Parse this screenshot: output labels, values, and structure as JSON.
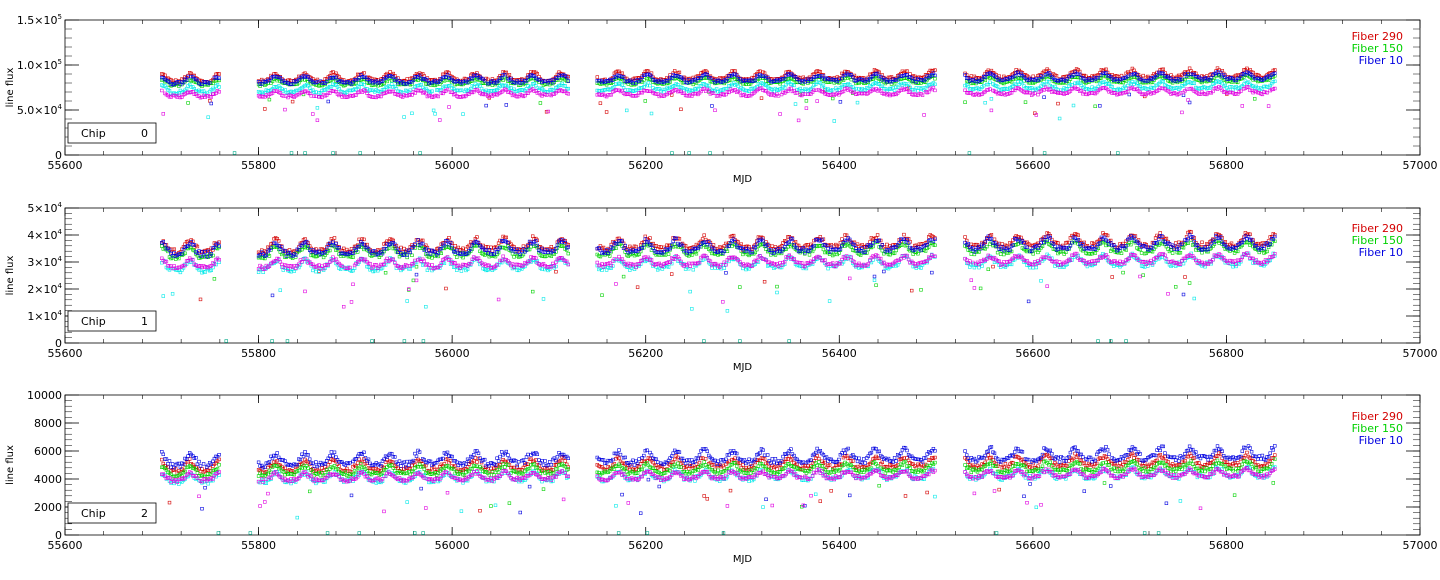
{
  "chart_data": [
    {
      "type": "scatter",
      "chip_label": "Chip",
      "chip_number": "0",
      "xlabel": "MJD",
      "ylabel": "line flux",
      "xlim": [
        55600,
        57000
      ],
      "ylim": [
        0,
        150000
      ],
      "x_ticks": [
        "55600",
        "55800",
        "56000",
        "56200",
        "56400",
        "56600",
        "56800",
        "57000"
      ],
      "y_ticks": [
        {
          "value": 0,
          "base": "0",
          "exp": ""
        },
        {
          "value": 50000,
          "base": "5.0×10",
          "exp": "4"
        },
        {
          "value": 100000,
          "base": "1.0×10",
          "exp": "5"
        },
        {
          "value": 150000,
          "base": "1.5×10",
          "exp": "5"
        }
      ],
      "legend": [
        "Fiber 290",
        "Fiber 150",
        "Fiber 10"
      ],
      "series": [
        {
          "name": "Fiber 290",
          "color": "#d40000",
          "baseline": 82000,
          "amp": 8000
        },
        {
          "name": "Fiber 150",
          "color": "#00d200",
          "baseline": 78000,
          "amp": 6000
        },
        {
          "name": "Fiber 10",
          "color": "#0000e0",
          "baseline": 80000,
          "amp": 7000
        },
        {
          "color": "#00e8e8",
          "baseline": 70000,
          "amp": 7000
        },
        {
          "color": "#e000e0",
          "baseline": 65000,
          "amp": 6000
        }
      ]
    },
    {
      "type": "scatter",
      "chip_label": "Chip",
      "chip_number": "1",
      "xlabel": "MJD",
      "ylabel": "line flux",
      "xlim": [
        55600,
        57000
      ],
      "ylim": [
        0,
        50000
      ],
      "x_ticks": [
        "55600",
        "55800",
        "56000",
        "56200",
        "56400",
        "56600",
        "56800",
        "57000"
      ],
      "y_ticks": [
        {
          "value": 0,
          "base": "0",
          "exp": ""
        },
        {
          "value": 10000,
          "base": "1×10",
          "exp": "4"
        },
        {
          "value": 20000,
          "base": "2×10",
          "exp": "4"
        },
        {
          "value": 30000,
          "base": "3×10",
          "exp": "4"
        },
        {
          "value": 40000,
          "base": "4×10",
          "exp": "4"
        },
        {
          "value": 50000,
          "base": "5×10",
          "exp": "4"
        }
      ],
      "legend": [
        "Fiber 290",
        "Fiber 150",
        "Fiber 10"
      ],
      "series": [
        {
          "name": "Fiber 290",
          "color": "#d40000",
          "baseline": 34000,
          "amp": 4000
        },
        {
          "name": "Fiber 150",
          "color": "#00d200",
          "baseline": 32000,
          "amp": 3500
        },
        {
          "name": "Fiber 10",
          "color": "#0000e0",
          "baseline": 33000,
          "amp": 4000
        },
        {
          "color": "#00e8e8",
          "baseline": 27000,
          "amp": 3500
        },
        {
          "color": "#e000e0",
          "baseline": 28000,
          "amp": 3000
        }
      ]
    },
    {
      "type": "scatter",
      "chip_label": "Chip",
      "chip_number": "2",
      "xlabel": "MJD",
      "ylabel": "line flux",
      "xlim": [
        55600,
        57000
      ],
      "ylim": [
        0,
        10000
      ],
      "x_ticks": [
        "55600",
        "55800",
        "56000",
        "56200",
        "56400",
        "56600",
        "56800",
        "57000"
      ],
      "y_ticks": [
        {
          "value": 0,
          "base": "0",
          "exp": ""
        },
        {
          "value": 2000,
          "base": "2000",
          "exp": ""
        },
        {
          "value": 4000,
          "base": "4000",
          "exp": ""
        },
        {
          "value": 6000,
          "base": "6000",
          "exp": ""
        },
        {
          "value": 8000,
          "base": "8000",
          "exp": ""
        },
        {
          "value": 10000,
          "base": "10000",
          "exp": ""
        }
      ],
      "legend": [
        "Fiber 290",
        "Fiber 150",
        "Fiber 10"
      ],
      "series": [
        {
          "name": "Fiber 290",
          "color": "#d40000",
          "baseline": 4600,
          "amp": 700
        },
        {
          "name": "Fiber 150",
          "color": "#00d200",
          "baseline": 4300,
          "amp": 600
        },
        {
          "name": "Fiber 10",
          "color": "#0000e0",
          "baseline": 5000,
          "amp": 800
        },
        {
          "color": "#00e8e8",
          "baseline": 3800,
          "amp": 600
        },
        {
          "color": "#e000e0",
          "baseline": 3900,
          "amp": 500
        }
      ]
    }
  ],
  "observing_segments": [
    [
      55700,
      55760
    ],
    [
      55800,
      56120
    ],
    [
      56150,
      56500
    ],
    [
      56530,
      56850
    ]
  ]
}
